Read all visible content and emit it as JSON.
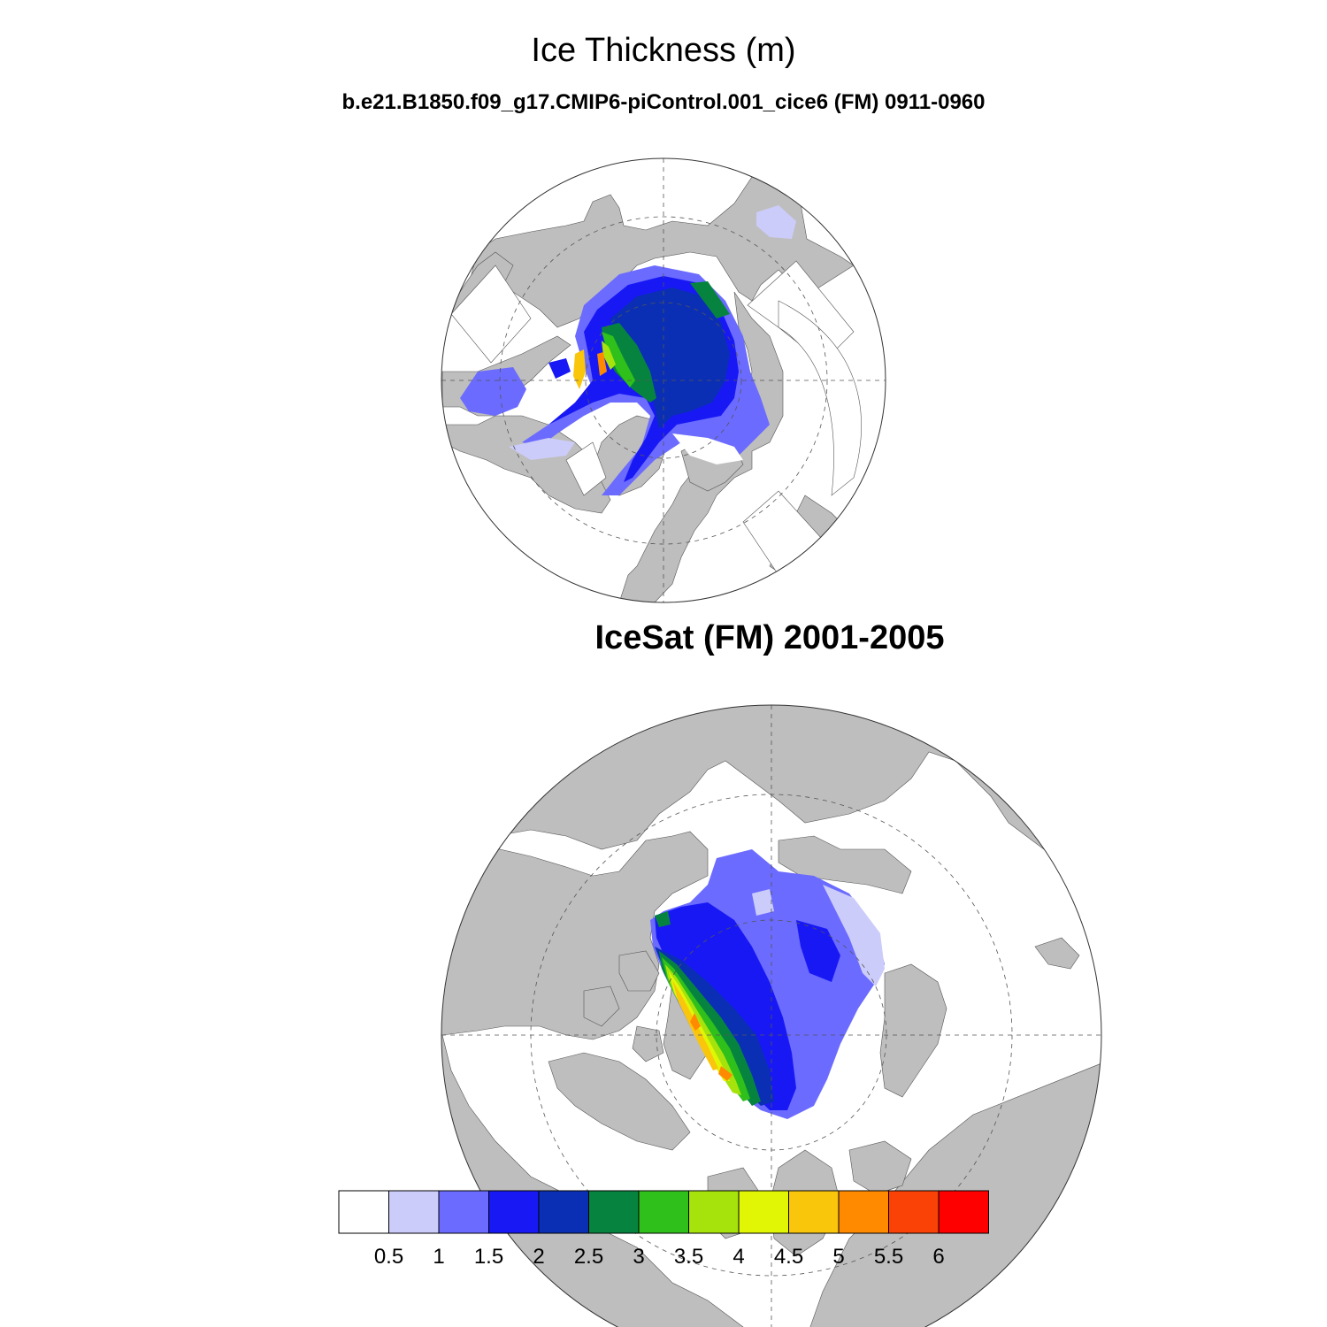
{
  "title": "Ice Thickness (m)",
  "model_subtitle": "b.e21.B1850.f09_g17.CMIP6-piControl.001_cice6 (FM) 0911-0960",
  "obs_title": "IceSat (FM) 2001-2005",
  "colorbar": {
    "colors": [
      "#ffffff",
      "#ccccfa",
      "#6b6bff",
      "#1818f5",
      "#0a2fb4",
      "#06843f",
      "#30c01b",
      "#a6e30d",
      "#e1f605",
      "#f9c60c",
      "#ff8a00",
      "#fa4206",
      "#fe0000"
    ],
    "labels": [
      "0.5",
      "1",
      "1.5",
      "2",
      "2.5",
      "3",
      "3.5",
      "4",
      "4.5",
      "5",
      "5.5",
      "6"
    ]
  },
  "colors": {
    "land": "#bebebe",
    "ocean": "#ffffff",
    "outline": "#000000"
  }
}
